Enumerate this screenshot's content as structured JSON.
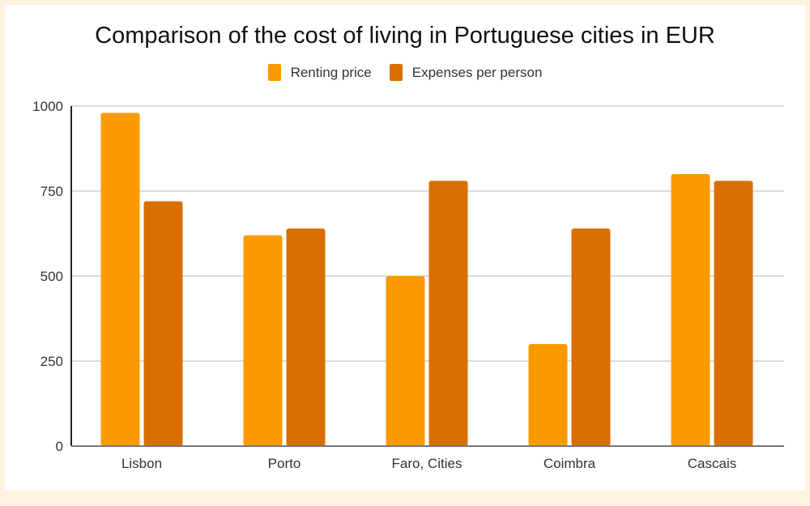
{
  "chart_data": {
    "type": "bar",
    "title": "Comparison of the cost of living in Portuguese cities in EUR",
    "xlabel": "",
    "ylabel": "",
    "categories": [
      "Lisbon",
      "Porto",
      "Faro, Cities",
      "Coimbra",
      "Cascais"
    ],
    "series": [
      {
        "name": "Renting price",
        "color": "#fb9a00",
        "values": [
          980,
          620,
          500,
          300,
          800
        ]
      },
      {
        "name": "Expenses per person",
        "color": "#d86f00",
        "values": [
          720,
          640,
          780,
          640,
          780
        ]
      }
    ],
    "ylim": [
      0,
      1000
    ],
    "yticks": [
      0,
      250,
      500,
      750,
      1000
    ],
    "ytick_labels": [
      "0",
      "250",
      "500",
      "750",
      "1000"
    ],
    "grid": true,
    "legend_position": "top-center"
  }
}
